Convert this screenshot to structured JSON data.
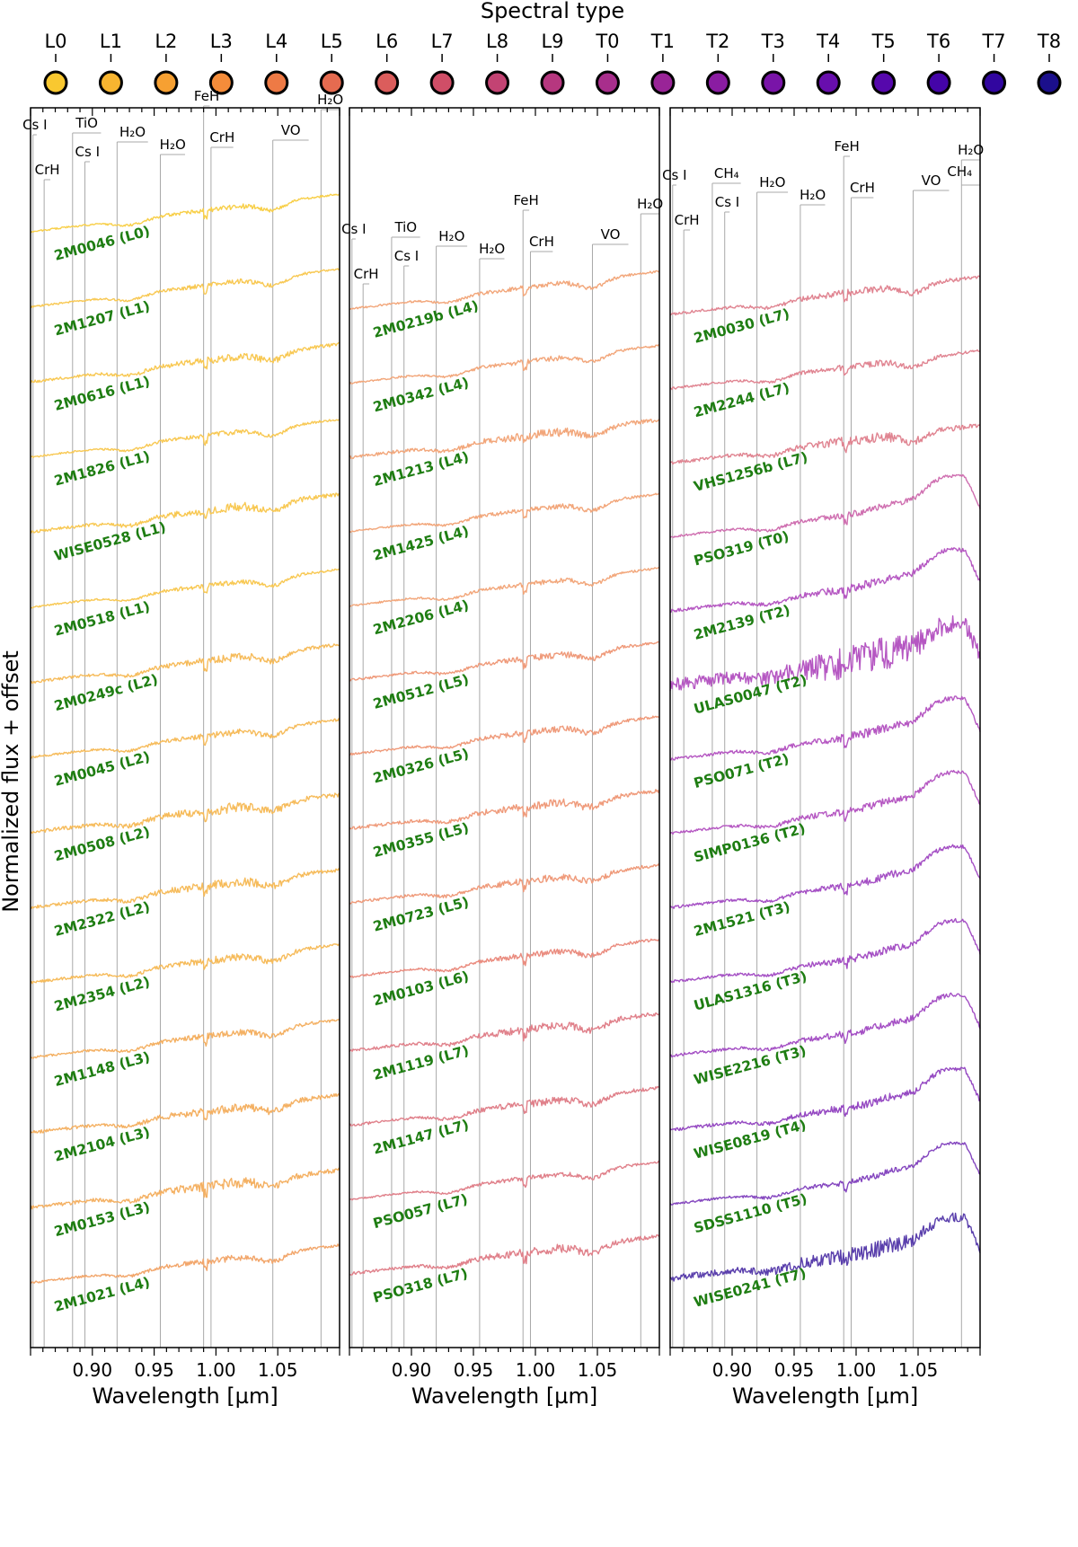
{
  "chart_data": {
    "type": "line",
    "title": "Spectral type",
    "xlabel": "Wavelength [µm]",
    "ylabel": "Normalized flux + offset",
    "xlim": [
      0.85,
      1.1
    ],
    "xticks": [
      {
        "value": 0.9,
        "label": "0.90"
      },
      {
        "value": 0.95,
        "label": "0.95"
      },
      {
        "value": 1.0,
        "label": "1.00"
      },
      {
        "value": 1.05,
        "label": "1.05"
      }
    ],
    "spectral_types": [
      {
        "label": "L0",
        "color": "#f9c830"
      },
      {
        "label": "L1",
        "color": "#f8b530"
      },
      {
        "label": "L2",
        "color": "#f6a032"
      },
      {
        "label": "L3",
        "color": "#f48c3a"
      },
      {
        "label": "L4",
        "color": "#ee7a45"
      },
      {
        "label": "L5",
        "color": "#e56b50"
      },
      {
        "label": "L6",
        "color": "#db5d5c"
      },
      {
        "label": "L7",
        "color": "#d04e67"
      },
      {
        "label": "L8",
        "color": "#c34373"
      },
      {
        "label": "L9",
        "color": "#b6377f"
      },
      {
        "label": "T0",
        "color": "#a82e8c"
      },
      {
        "label": "T1",
        "color": "#992497"
      },
      {
        "label": "T2",
        "color": "#8a1ca2"
      },
      {
        "label": "T3",
        "color": "#7914a8"
      },
      {
        "label": "T4",
        "color": "#680ead"
      },
      {
        "label": "T5",
        "color": "#5608ac"
      },
      {
        "label": "T6",
        "color": "#4404a8"
      },
      {
        "label": "T7",
        "color": "#31069f"
      },
      {
        "label": "T8",
        "color": "#1b0f8c"
      }
    ],
    "features": [
      {
        "name": "Cs I",
        "wl": 0.852
      },
      {
        "name": "CrH",
        "wl": 0.861
      },
      {
        "name": "TiO",
        "wl": 0.884
      },
      {
        "name": "Cs I",
        "wl": 0.894
      },
      {
        "name": "H₂O",
        "wl": 0.92
      },
      {
        "name": "H₂O",
        "wl": 0.955
      },
      {
        "name": "FeH",
        "wl": 0.99
      },
      {
        "name": "CrH",
        "wl": 0.996
      },
      {
        "name": "VO",
        "wl": 1.046
      },
      {
        "name": "H₂O",
        "wl": 1.085
      }
    ],
    "panels": [
      {
        "name": "early-L",
        "spectra": [
          {
            "label": "2M0046 (L0)",
            "color": "#f8cf48"
          },
          {
            "label": "2M1207 (L1)",
            "color": "#f8c852"
          },
          {
            "label": "2M0616 (L1)",
            "color": "#f8c852"
          },
          {
            "label": "2M1826 (L1)",
            "color": "#f8c852"
          },
          {
            "label": "WISE0528 (L1)",
            "color": "#f8c852"
          },
          {
            "label": "2M0518 (L1)",
            "color": "#f8c852"
          },
          {
            "label": "2M0249c (L2)",
            "color": "#f6bb5a"
          },
          {
            "label": "2M0045 (L2)",
            "color": "#f6bb5a"
          },
          {
            "label": "2M0508 (L2)",
            "color": "#f6bb5a"
          },
          {
            "label": "2M2322 (L2)",
            "color": "#f6bb5a"
          },
          {
            "label": "2M2354 (L2)",
            "color": "#f6bb5a"
          },
          {
            "label": "2M1148 (L3)",
            "color": "#f4b062"
          },
          {
            "label": "2M2104 (L3)",
            "color": "#f4b062"
          },
          {
            "label": "2M0153 (L3)",
            "color": "#f4b062"
          },
          {
            "label": "2M1021 (L4)",
            "color": "#f2a66b"
          }
        ]
      },
      {
        "name": "mid-late-L",
        "spectra": [
          {
            "label": "2M0219b (L4)",
            "color": "#f2a67a"
          },
          {
            "label": "2M0342 (L4)",
            "color": "#f2a67a"
          },
          {
            "label": "2M1213 (L4)",
            "color": "#f2a67a"
          },
          {
            "label": "2M1425 (L4)",
            "color": "#f2a67a"
          },
          {
            "label": "2M2206 (L4)",
            "color": "#f2a67a"
          },
          {
            "label": "2M0512 (L5)",
            "color": "#ef9a7a"
          },
          {
            "label": "2M0326 (L5)",
            "color": "#ef9a7a"
          },
          {
            "label": "2M0355 (L5)",
            "color": "#ef9a7a"
          },
          {
            "label": "2M0723 (L5)",
            "color": "#ef9a7a"
          },
          {
            "label": "2M0103 (L6)",
            "color": "#ea8c7f"
          },
          {
            "label": "2M1119 (L7)",
            "color": "#e0808a"
          },
          {
            "label": "2M1147 (L7)",
            "color": "#e0808a"
          },
          {
            "label": "PSO057 (L7)",
            "color": "#e0808a"
          },
          {
            "label": "PSO318 (L7)",
            "color": "#e0808a"
          }
        ]
      },
      {
        "name": "late-L-T",
        "spectra": [
          {
            "label": "2M0030 (L7)",
            "color": "#e08491"
          },
          {
            "label": "2M2244 (L7)",
            "color": "#e08491"
          },
          {
            "label": "VHS1256b (L7)",
            "color": "#e08491"
          },
          {
            "label": "PSO319 (T0)",
            "color": "#cf6fb0"
          },
          {
            "label": "2M2139 (T2)",
            "color": "#b557c2"
          },
          {
            "label": "ULAS0047 (T2)",
            "color": "#b557c2"
          },
          {
            "label": "PSO071 (T2)",
            "color": "#b557c2"
          },
          {
            "label": "SIMP0136 (T2)",
            "color": "#b557c2"
          },
          {
            "label": "2M1521 (T3)",
            "color": "#a44fc4"
          },
          {
            "label": "ULAS1316 (T3)",
            "color": "#a44fc4"
          },
          {
            "label": "WISE2216 (T3)",
            "color": "#a44fc4"
          },
          {
            "label": "WISE0819 (T4)",
            "color": "#9549c2"
          },
          {
            "label": "SDSS1110 (T5)",
            "color": "#8446bf"
          },
          {
            "label": "WISE0241 (T7)",
            "color": "#5a3fac"
          }
        ]
      }
    ]
  }
}
